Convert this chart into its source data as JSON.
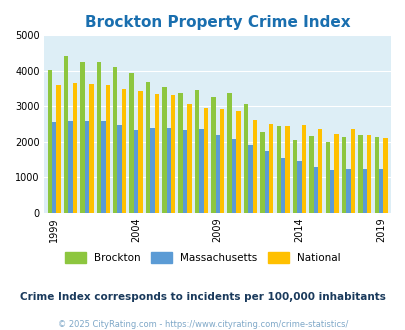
{
  "title": "Brockton Property Crime Index",
  "title_color": "#1a6faf",
  "subtitle": "Crime Index corresponds to incidents per 100,000 inhabitants",
  "footer": "© 2025 CityRating.com - https://www.cityrating.com/crime-statistics/",
  "years": [
    1999,
    2000,
    2001,
    2002,
    2003,
    2004,
    2005,
    2006,
    2007,
    2008,
    2009,
    2010,
    2011,
    2012,
    2013,
    2014,
    2015,
    2016,
    2017,
    2018,
    2019
  ],
  "brockton": [
    4020,
    4430,
    4260,
    4260,
    4110,
    3950,
    3700,
    3540,
    3380,
    3460,
    3260,
    3380,
    3070,
    2270,
    2440,
    2060,
    2160,
    1990,
    2150,
    2200,
    2130
  ],
  "massachusetts": [
    2550,
    2600,
    2590,
    2580,
    2470,
    2340,
    2390,
    2390,
    2330,
    2350,
    2180,
    2090,
    1900,
    1730,
    1560,
    1470,
    1290,
    1210,
    1250,
    1250,
    1230
  ],
  "national": [
    3600,
    3670,
    3640,
    3600,
    3490,
    3440,
    3340,
    3320,
    3060,
    2950,
    2930,
    2870,
    2610,
    2500,
    2460,
    2480,
    2360,
    2210,
    2360,
    2200,
    2110
  ],
  "brockton_color": "#8dc63f",
  "massachusetts_color": "#5b9bd5",
  "national_color": "#ffc000",
  "bg_color": "#ddeef6",
  "ylim": [
    0,
    5000
  ],
  "yticks": [
    0,
    1000,
    2000,
    3000,
    4000,
    5000
  ],
  "xtick_years": [
    1999,
    2004,
    2009,
    2014,
    2019
  ],
  "legend_labels": [
    "Brockton",
    "Massachusetts",
    "National"
  ],
  "bar_width": 0.27
}
